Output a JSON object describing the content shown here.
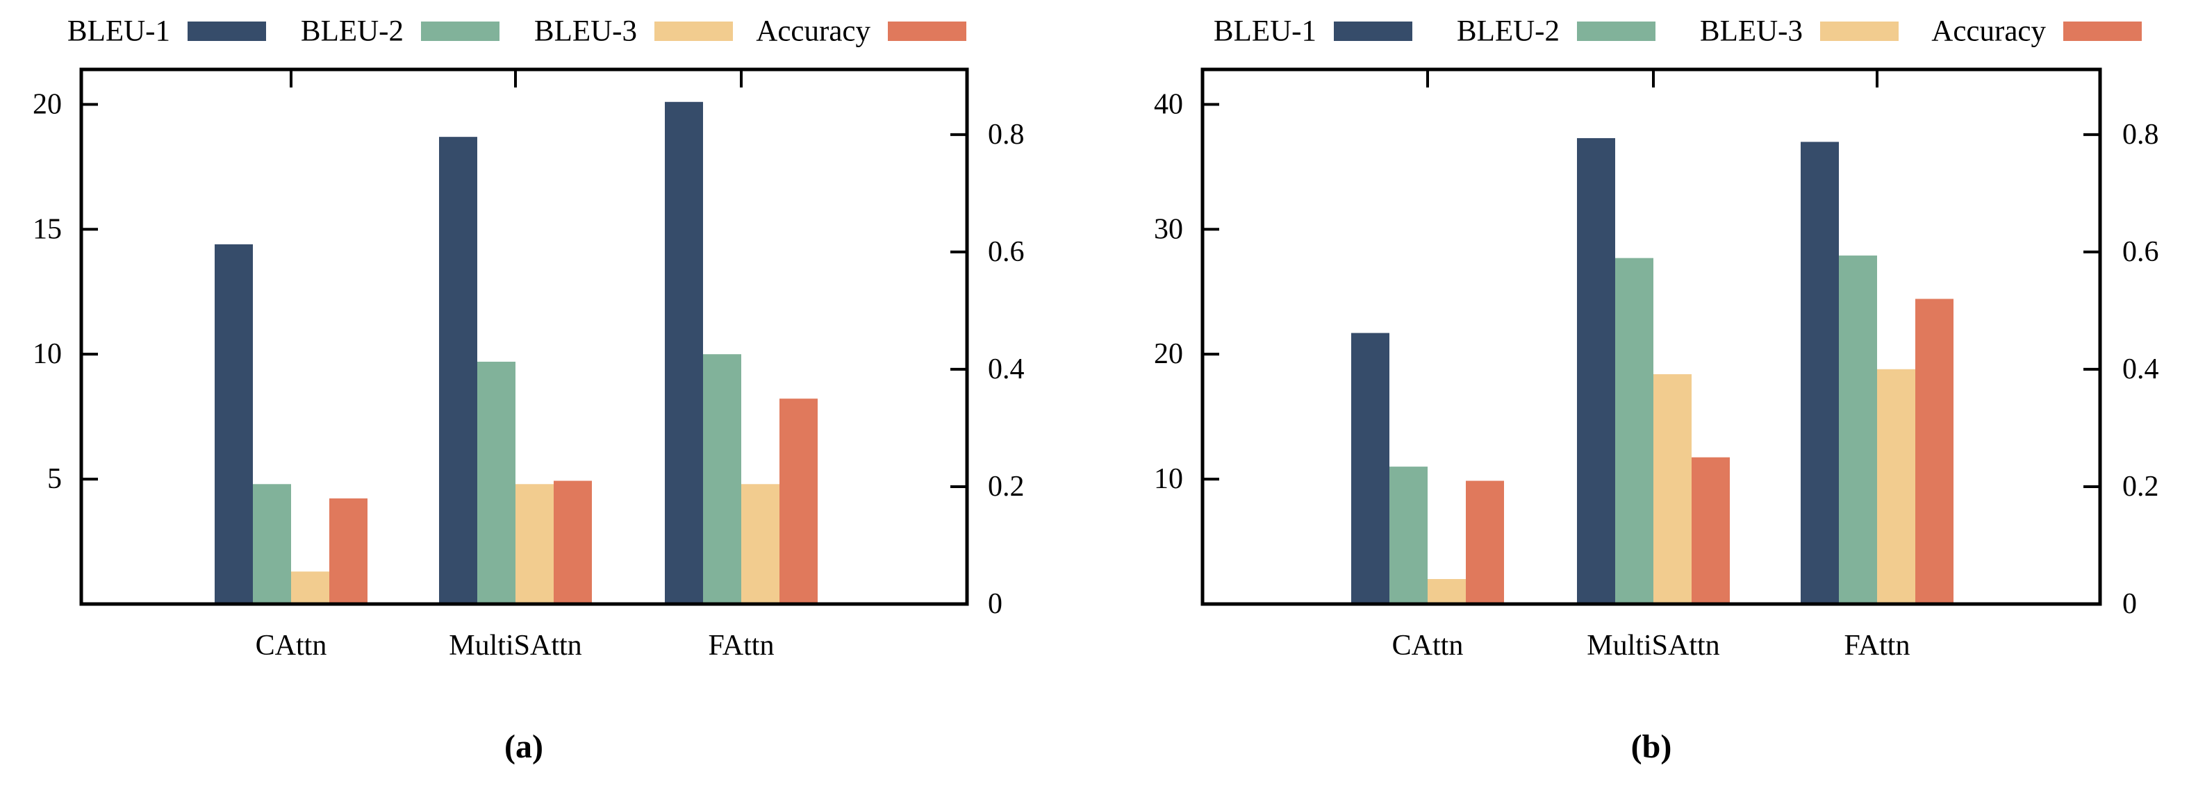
{
  "page": {
    "background": "#ffffff",
    "text_color": "#000000"
  },
  "chart_data": [
    {
      "id": "a",
      "type": "bar",
      "caption": "(a)",
      "categories": [
        "CAttn",
        "MultiSAttn",
        "FAttn"
      ],
      "series": [
        {
          "name": "BLEU-1",
          "axis": "left",
          "color": "#364C6A",
          "values": [
            14.4,
            18.7,
            20.1
          ]
        },
        {
          "name": "BLEU-2",
          "axis": "left",
          "color": "#81B29A",
          "values": [
            4.8,
            9.7,
            10.0
          ]
        },
        {
          "name": "BLEU-3",
          "axis": "left",
          "color": "#F2CC8F",
          "values": [
            1.3,
            4.8,
            4.8
          ]
        },
        {
          "name": "Accuracy",
          "axis": "right",
          "color": "#E0795C",
          "values": [
            0.18,
            0.21,
            0.35
          ]
        }
      ],
      "left_axis": {
        "ticks": [
          5,
          10,
          15,
          20
        ],
        "range": [
          0,
          21.4
        ]
      },
      "right_axis": {
        "ticks": [
          0,
          0.2,
          0.4,
          0.6,
          0.8
        ],
        "range": [
          0,
          0.911
        ]
      },
      "legend_position": "top",
      "grid": false
    },
    {
      "id": "b",
      "type": "bar",
      "caption": "(b)",
      "categories": [
        "CAttn",
        "MultiSAttn",
        "FAttn"
      ],
      "series": [
        {
          "name": "BLEU-1",
          "axis": "left",
          "color": "#364C6A",
          "values": [
            21.7,
            37.3,
            37.0
          ]
        },
        {
          "name": "BLEU-2",
          "axis": "left",
          "color": "#81B29A",
          "values": [
            11.0,
            27.7,
            27.9
          ]
        },
        {
          "name": "BLEU-3",
          "axis": "left",
          "color": "#F2CC8F",
          "values": [
            2.0,
            18.4,
            18.8
          ]
        },
        {
          "name": "Accuracy",
          "axis": "right",
          "color": "#E0795C",
          "values": [
            0.21,
            0.25,
            0.52
          ]
        }
      ],
      "left_axis": {
        "ticks": [
          10,
          20,
          30,
          40
        ],
        "range": [
          0,
          42.8
        ]
      },
      "right_axis": {
        "ticks": [
          0,
          0.2,
          0.4,
          0.6,
          0.8
        ],
        "range": [
          0,
          0.911
        ]
      },
      "legend_position": "top",
      "grid": false
    }
  ]
}
